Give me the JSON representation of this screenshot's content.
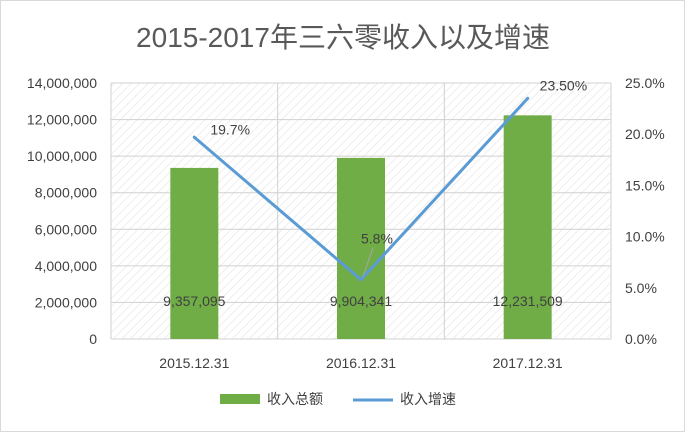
{
  "chart_data": {
    "type": "bar",
    "title": "2015-2017年三六零收入以及增速",
    "categories": [
      "2015.12.31",
      "2016.12.31",
      "2017.12.31"
    ],
    "series": [
      {
        "name": "收入总额",
        "type": "bar",
        "axis": "left",
        "color": "#70ad47",
        "values": [
          9357095,
          9904341,
          12231509
        ],
        "labels": [
          "9,357,095",
          "9,904,341",
          "12,231,509"
        ]
      },
      {
        "name": "收入增速",
        "type": "line",
        "axis": "right",
        "color": "#5b9bd5",
        "values": [
          19.7,
          5.8,
          23.5
        ],
        "labels": [
          "19.7%",
          "5.8%",
          "23.50%"
        ]
      }
    ],
    "y_left": {
      "ylim": [
        0,
        14000000
      ],
      "ticks": [
        "0",
        "2,000,000",
        "4,000,000",
        "6,000,000",
        "8,000,000",
        "10,000,000",
        "12,000,000",
        "14,000,000"
      ]
    },
    "y_right": {
      "ylim": [
        0,
        25
      ],
      "ticks": [
        "0.0%",
        "5.0%",
        "10.0%",
        "15.0%",
        "20.0%",
        "25.0%"
      ]
    },
    "legend_position": "bottom",
    "grid": true
  }
}
